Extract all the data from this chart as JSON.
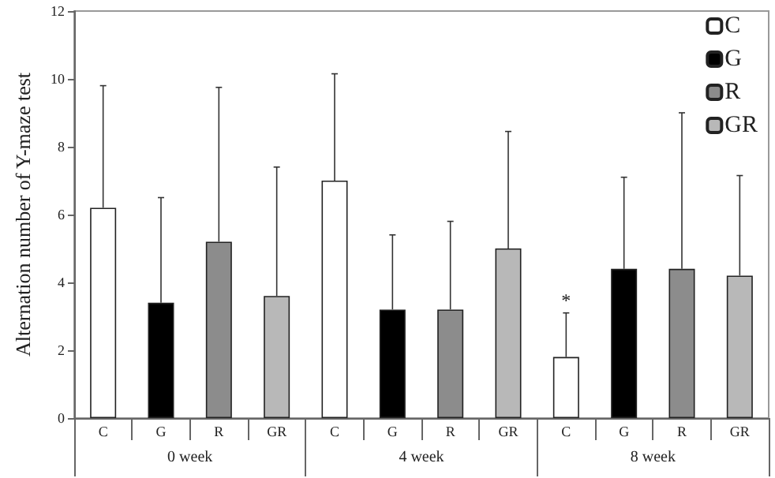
{
  "chart_data": {
    "type": "bar",
    "ylabel": "Alternation number of Y-maze test",
    "categories": [
      "0 week",
      "4 week",
      "8 week"
    ],
    "series": [
      {
        "name": "C",
        "color": "#ffffff",
        "values": [
          6.2,
          7.0,
          1.8
        ],
        "errors": [
          [
            6.2,
            9.8
          ],
          [
            7.0,
            10.15
          ],
          [
            1.8,
            3.1
          ]
        ],
        "value_labels": [
          null,
          null,
          "*"
        ]
      },
      {
        "name": "G",
        "color": "#000000",
        "values": [
          3.4,
          3.2,
          4.4
        ],
        "errors": [
          [
            3.4,
            6.5
          ],
          [
            3.2,
            5.4
          ],
          [
            4.4,
            7.1
          ]
        ]
      },
      {
        "name": "R",
        "color": "#8c8c8c",
        "values": [
          5.2,
          3.2,
          4.4
        ],
        "errors": [
          [
            5.2,
            9.75
          ],
          [
            3.2,
            5.8
          ],
          [
            4.4,
            9.0
          ]
        ]
      },
      {
        "name": "GR",
        "color": "#b8b8b8",
        "values": [
          3.6,
          5.0,
          4.2
        ],
        "errors": [
          [
            3.6,
            7.4
          ],
          [
            5.0,
            8.45
          ],
          [
            4.2,
            7.15
          ]
        ]
      }
    ],
    "ylim": [
      0,
      12
    ],
    "yticks": [
      0,
      2,
      4,
      6,
      8,
      10,
      12
    ],
    "grid": false,
    "legend": "top right"
  }
}
